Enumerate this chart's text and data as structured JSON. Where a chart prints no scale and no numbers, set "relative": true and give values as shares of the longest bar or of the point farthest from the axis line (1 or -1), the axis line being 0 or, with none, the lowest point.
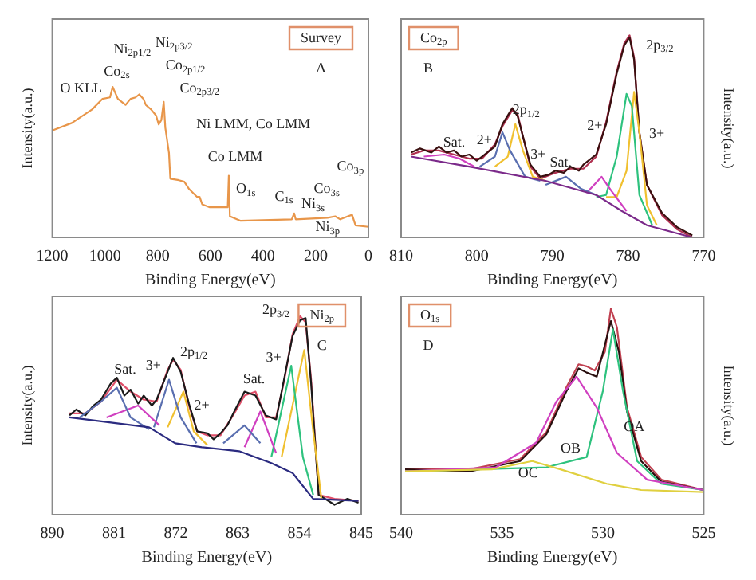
{
  "chart_data": [
    {
      "type": "line",
      "title": "Survey",
      "subtitle": "A",
      "xlabel": "Binding Energy(eV)",
      "ylabel": "Intensity(a.u.)",
      "relative": true,
      "marker": "none",
      "xlim": [
        1200,
        0
      ],
      "xticks": [
        1200,
        1000,
        800,
        600,
        400,
        200,
        0
      ],
      "series": [
        {
          "color": "#e8964a",
          "x": [
            1200,
            1126,
            1049,
            1010,
            981,
            971,
            951,
            922,
            903,
            884,
            870,
            854,
            845,
            825,
            806,
            796,
            786,
            777,
            771,
            757,
            752,
            719,
            699,
            680,
            651,
            641,
            631,
            602,
            534,
            530,
            526,
            485,
            291,
            282,
            276,
            155,
            126,
            107,
            78,
            62,
            49,
            0
          ],
          "values": [
            0.71,
            0.76,
            0.85,
            0.92,
            0.93,
            1.0,
            0.92,
            0.88,
            0.92,
            0.93,
            0.95,
            0.92,
            0.88,
            0.85,
            0.81,
            0.75,
            0.78,
            0.9,
            0.73,
            0.56,
            0.39,
            0.38,
            0.37,
            0.32,
            0.27,
            0.27,
            0.22,
            0.2,
            0.2,
            0.41,
            0.14,
            0.11,
            0.12,
            0.16,
            0.12,
            0.13,
            0.14,
            0.12,
            0.14,
            0.15,
            0.08,
            0.07
          ]
        }
      ],
      "annotations": [
        "O KLL",
        "Co$_{2s}$",
        "Ni$_{2p1/2}$",
        "Ni$_{2p3/2}$",
        "Co$_{2p1/2}$",
        "Co$_{2p3/2}$",
        "Ni LMM, Co LMM",
        "Co LMM",
        "O$_{1s}$",
        "C$_{1s}$",
        "Ni$_{3s}$",
        "Co$_{3s}$",
        "Co$_{3p}$",
        "Ni$_{3p}$"
      ]
    },
    {
      "type": "line",
      "title": "Co$_{2p}$",
      "subtitle": "B",
      "xlabel": "Binding Energy(eV)",
      "ylabel": "Intensity(a.u.)",
      "relative": true,
      "marker": "none",
      "xlim": [
        810,
        770
      ],
      "xticks": [
        810,
        800,
        790,
        780,
        770
      ],
      "series": [
        {
          "color": "#7b2a8a",
          "x": [
            808.7,
            801,
            790.9,
            784.2,
            780.8,
            777.5,
            771.5
          ],
          "values": [
            0.4,
            0.35,
            0.28,
            0.21,
            0.13,
            0.06,
            0.0
          ]
        },
        {
          "color": "#d040c0",
          "x": [
            807,
            804.3,
            802.3,
            800.3
          ],
          "values": [
            0.4,
            0.41,
            0.39,
            0.35
          ]
        },
        {
          "color": "#5a6fb0",
          "x": [
            799.6,
            797.6,
            796.6,
            795.6,
            793.6,
            791.6
          ],
          "values": [
            0.35,
            0.4,
            0.52,
            0.43,
            0.3,
            0.28
          ]
        },
        {
          "color": "#f0c030",
          "x": [
            797.6,
            795.9,
            794.9,
            793.9,
            792.6,
            790.9
          ],
          "values": [
            0.35,
            0.4,
            0.56,
            0.43,
            0.3,
            0.28
          ]
        },
        {
          "color": "#5a6fb0",
          "x": [
            790.9,
            788.2,
            786.2,
            784.2
          ],
          "values": [
            0.26,
            0.3,
            0.24,
            0.21
          ]
        },
        {
          "color": "#d040c0",
          "x": [
            785.5,
            783.5,
            782.2,
            780.2
          ],
          "values": [
            0.22,
            0.3,
            0.23,
            0.13
          ]
        },
        {
          "color": "#2ec27e",
          "x": [
            784.2,
            782.9,
            781.5,
            780.2,
            779.5,
            778.5,
            776.8
          ],
          "values": [
            0.2,
            0.21,
            0.4,
            0.71,
            0.65,
            0.21,
            0.06
          ]
        },
        {
          "color": "#f0c030",
          "x": [
            782.9,
            781.5,
            780.2,
            779.2,
            778.5,
            777.5,
            776.2
          ],
          "values": [
            0.2,
            0.2,
            0.33,
            0.72,
            0.52,
            0.16,
            0.06
          ]
        },
        {
          "color": "#3a1010",
          "x": [
            808.7,
            807.5,
            806,
            805,
            804,
            803,
            802,
            801,
            800,
            799.3,
            797.6,
            796.6,
            795.3,
            794.6,
            793.9,
            792.9,
            791.6,
            790.5,
            789.6,
            788.5,
            787.6,
            786.5,
            785.9,
            784.2,
            782.9,
            781.5,
            780.5,
            779.8,
            779.2,
            778.5,
            777.5,
            775.5,
            773.5,
            771.5
          ],
          "values": [
            0.42,
            0.44,
            0.42,
            0.45,
            0.42,
            0.43,
            0.4,
            0.41,
            0.38,
            0.4,
            0.45,
            0.56,
            0.64,
            0.6,
            0.5,
            0.36,
            0.3,
            0.31,
            0.33,
            0.32,
            0.35,
            0.33,
            0.36,
            0.41,
            0.56,
            0.81,
            0.95,
            0.99,
            0.88,
            0.52,
            0.26,
            0.12,
            0.05,
            0.01
          ]
        },
        {
          "color": "#b03050",
          "x": [
            808.7,
            807,
            805,
            803,
            801,
            799.3,
            797.6,
            796.6,
            795.3,
            794.6,
            793.9,
            792.9,
            791.6,
            789.6,
            787.6,
            785.9,
            784.2,
            782.9,
            781.5,
            780.5,
            779.8,
            779.2,
            778.5,
            777.5,
            775.5,
            773.5,
            771.5
          ],
          "values": [
            0.41,
            0.43,
            0.43,
            0.41,
            0.39,
            0.39,
            0.46,
            0.55,
            0.63,
            0.61,
            0.5,
            0.35,
            0.29,
            0.32,
            0.34,
            0.34,
            0.4,
            0.57,
            0.82,
            0.96,
            1.0,
            0.89,
            0.52,
            0.26,
            0.11,
            0.04,
            0.0
          ]
        }
      ],
      "annotations": [
        "Sat.",
        "2+",
        "2p$_{1/2}$",
        "3+",
        "Sat.",
        "2+",
        "3+",
        "2p$_{3/2}$"
      ]
    },
    {
      "type": "line",
      "title": "Ni$_{2p}$",
      "subtitle": "C",
      "xlabel": "Binding Energy(eV)",
      "ylabel": "Intensity(a.u.)",
      "relative": true,
      "marker": "none",
      "xlim": [
        890,
        845
      ],
      "xticks": [
        890,
        881,
        872,
        863,
        854,
        845
      ],
      "series": [
        {
          "color": "#2b2b80",
          "x": [
            887.5,
            875.9,
            872.1,
            868.2,
            862.8,
            858.1,
            855,
            852,
            845.4
          ],
          "values": [
            0.49,
            0.44,
            0.36,
            0.34,
            0.32,
            0.26,
            0.21,
            0.08,
            0.07
          ]
        },
        {
          "color": "#5a6fb0",
          "x": [
            886,
            882.9,
            880.6,
            878.6,
            875.9
          ],
          "values": [
            0.49,
            0.57,
            0.64,
            0.49,
            0.43
          ]
        },
        {
          "color": "#d040c0",
          "x": [
            882.1,
            877.5,
            874.4
          ],
          "values": [
            0.49,
            0.55,
            0.45
          ]
        },
        {
          "color": "#5a6fb0",
          "x": [
            875.2,
            873,
            871.3,
            869
          ],
          "values": [
            0.44,
            0.68,
            0.49,
            0.36
          ]
        },
        {
          "color": "#f0c030",
          "x": [
            873.2,
            870.9,
            869.4,
            867.4
          ],
          "values": [
            0.44,
            0.62,
            0.42,
            0.35
          ]
        },
        {
          "color": "#5a6fb0",
          "x": [
            865.1,
            862,
            859.7
          ],
          "values": [
            0.36,
            0.45,
            0.36
          ]
        },
        {
          "color": "#d040c0",
          "x": [
            862,
            859.7,
            857.4
          ],
          "values": [
            0.34,
            0.52,
            0.31
          ]
        },
        {
          "color": "#2ec27e",
          "x": [
            858.1,
            855.2,
            853.5,
            852
          ],
          "values": [
            0.29,
            0.75,
            0.29,
            0.1
          ]
        },
        {
          "color": "#f0c030",
          "x": [
            856.6,
            853.3,
            852,
            850.8
          ],
          "values": [
            0.29,
            0.83,
            0.42,
            0.08
          ]
        },
        {
          "color": "#1a1a1a",
          "x": [
            887.5,
            886.5,
            885.2,
            884,
            882.9,
            881.5,
            880.6,
            879.5,
            878.6,
            877.5,
            876.7,
            875.5,
            874.8,
            873.2,
            872.4,
            871.3,
            870.1,
            868.9,
            867.4,
            866.5,
            865.5,
            864.5,
            863.5,
            862,
            860.4,
            858.9,
            857.4,
            856.2,
            855,
            853.9,
            853.1,
            852.3,
            851.2,
            848.9,
            847,
            845.4
          ],
          "values": [
            0.5,
            0.53,
            0.5,
            0.55,
            0.58,
            0.66,
            0.69,
            0.6,
            0.63,
            0.56,
            0.6,
            0.55,
            0.58,
            0.72,
            0.79,
            0.72,
            0.56,
            0.42,
            0.41,
            0.38,
            0.41,
            0.45,
            0.52,
            0.62,
            0.6,
            0.5,
            0.48,
            0.69,
            0.9,
            0.98,
            0.99,
            0.66,
            0.1,
            0.05,
            0.08,
            0.06
          ]
        },
        {
          "color": "#e0506a",
          "x": [
            887.5,
            885.2,
            882.9,
            880.6,
            878.6,
            876.7,
            874.8,
            873.2,
            872.4,
            871.3,
            870.1,
            868.9,
            867.4,
            865.5,
            863.5,
            862,
            860.4,
            858.9,
            857.4,
            856.2,
            855,
            853.9,
            853.1,
            852.3,
            851.2,
            848.9,
            845.4
          ],
          "values": [
            0.51,
            0.51,
            0.57,
            0.68,
            0.62,
            0.58,
            0.57,
            0.73,
            0.78,
            0.73,
            0.55,
            0.42,
            0.4,
            0.4,
            0.51,
            0.6,
            0.62,
            0.49,
            0.49,
            0.68,
            0.91,
            1.0,
            0.97,
            0.68,
            0.1,
            0.08,
            0.07
          ]
        }
      ],
      "annotations": [
        "Sat.",
        "3+",
        "2p$_{1/2}$",
        "2+",
        "Sat.",
        "3+",
        "2p$_{3/2}$"
      ]
    },
    {
      "type": "line",
      "title": "O$_{1s}$",
      "subtitle": "D",
      "xlabel": "Binding Energy(eV)",
      "ylabel": "Intensity(a.u.)",
      "relative": true,
      "marker": "none",
      "xlim": [
        540,
        525
      ],
      "xticks": [
        540,
        535,
        530,
        525
      ],
      "series": [
        {
          "color": "#e0d040",
          "x": [
            539.8,
            535.5,
            533.5,
            532.1,
            529.8,
            528.1,
            525
          ],
          "values": [
            0.21,
            0.22,
            0.26,
            0.22,
            0.15,
            0.12,
            0.11
          ]
        },
        {
          "color": "#d040c0",
          "x": [
            539.8,
            535.3,
            533.3,
            532.3,
            531.3,
            530.3,
            529.3,
            527.8,
            525
          ],
          "values": [
            0.21,
            0.23,
            0.35,
            0.55,
            0.67,
            0.52,
            0.3,
            0.17,
            0.12
          ]
        },
        {
          "color": "#2ec27e",
          "x": [
            539.8,
            532.8,
            530.8,
            530,
            529.5,
            529,
            528.3,
            527.1,
            525
          ],
          "values": [
            0.21,
            0.23,
            0.28,
            0.6,
            0.9,
            0.6,
            0.26,
            0.15,
            0.12
          ]
        },
        {
          "color": "#2a1010",
          "x": [
            539.8,
            536.6,
            534.1,
            532.8,
            531.8,
            531.2,
            530.8,
            530.3,
            529.6,
            529.2,
            528.8,
            528.1,
            527.1,
            525
          ],
          "values": [
            0.22,
            0.21,
            0.26,
            0.39,
            0.6,
            0.71,
            0.69,
            0.67,
            0.94,
            0.79,
            0.5,
            0.26,
            0.16,
            0.12
          ]
        },
        {
          "color": "#c04050",
          "x": [
            539.8,
            536.6,
            534.1,
            532.8,
            531.8,
            531.2,
            530.8,
            530.4,
            529.9,
            529.6,
            529.3,
            528.8,
            528.1,
            527.1,
            525
          ],
          "values": [
            0.22,
            0.22,
            0.27,
            0.4,
            0.62,
            0.73,
            0.72,
            0.7,
            0.79,
            1.0,
            0.91,
            0.52,
            0.28,
            0.17,
            0.12
          ]
        }
      ],
      "annotations": [
        "OB",
        "OA",
        "OC"
      ]
    }
  ]
}
